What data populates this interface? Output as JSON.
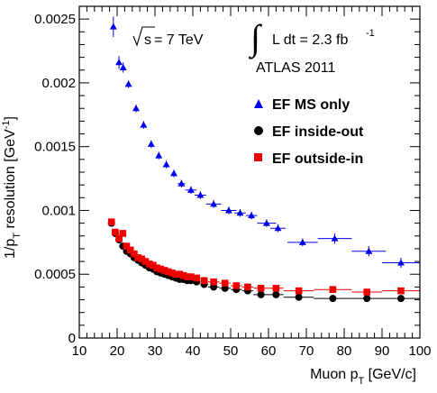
{
  "chart_data": {
    "type": "scatter",
    "xlabel": "Muon p_T [GeV/c]",
    "ylabel": "1/p_T resolution [GeV^-1]",
    "xlim": [
      10,
      100
    ],
    "ylim": [
      0,
      0.0026
    ],
    "x_ticks": [
      "10",
      "20",
      "30",
      "40",
      "50",
      "60",
      "70",
      "80",
      "90",
      "100"
    ],
    "y_ticks": [
      "0",
      "0.0005",
      "0.001",
      "0.0015",
      "0.002",
      "0.0025"
    ],
    "annotations": {
      "energy": "= 7 TeV",
      "lumi": "L dt = 2.3 fb",
      "lumi_exp": "-1",
      "experiment": "ATLAS 2011"
    },
    "legend_position": "top-right",
    "series": [
      {
        "name": "EF MS only",
        "marker": "triangle",
        "color": "#0000ee",
        "points": [
          {
            "x": 19.0,
            "y": 0.00244,
            "xerr": 0.5,
            "yerr": 8e-05
          },
          {
            "x": 20.5,
            "y": 0.00216,
            "xerr": 0.5,
            "yerr": 5e-05
          },
          {
            "x": 21.6,
            "y": 0.00212,
            "xerr": 0.5,
            "yerr": 4e-05
          },
          {
            "x": 23.0,
            "y": 0.00199,
            "xerr": 0.5,
            "yerr": 3e-05
          },
          {
            "x": 25.0,
            "y": 0.0018,
            "xerr": 0.5,
            "yerr": 3e-05
          },
          {
            "x": 27.0,
            "y": 0.00167,
            "xerr": 0.5,
            "yerr": 3e-05
          },
          {
            "x": 29.0,
            "y": 0.00152,
            "xerr": 0.5,
            "yerr": 3e-05
          },
          {
            "x": 31.0,
            "y": 0.00143,
            "xerr": 0.5,
            "yerr": 3e-05
          },
          {
            "x": 33.0,
            "y": 0.00136,
            "xerr": 0.5,
            "yerr": 3e-05
          },
          {
            "x": 35.0,
            "y": 0.00129,
            "xerr": 0.5,
            "yerr": 3e-05
          },
          {
            "x": 37.0,
            "y": 0.00121,
            "xerr": 1.0,
            "yerr": 3e-05
          },
          {
            "x": 39.5,
            "y": 0.00116,
            "xerr": 1.5,
            "yerr": 3e-05
          },
          {
            "x": 42.0,
            "y": 0.00112,
            "xerr": 1.5,
            "yerr": 3e-05
          },
          {
            "x": 45.5,
            "y": 0.00105,
            "xerr": 2.0,
            "yerr": 3e-05
          },
          {
            "x": 49.5,
            "y": 0.001,
            "xerr": 2.0,
            "yerr": 3e-05
          },
          {
            "x": 52.5,
            "y": 0.00098,
            "xerr": 1.5,
            "yerr": 3e-05
          },
          {
            "x": 55.5,
            "y": 0.00096,
            "xerr": 1.5,
            "yerr": 3e-05
          },
          {
            "x": 59.5,
            "y": 0.0009,
            "xerr": 2.5,
            "yerr": 3e-05
          },
          {
            "x": 62.5,
            "y": 0.00086,
            "xerr": 2.0,
            "yerr": 3e-05
          },
          {
            "x": 69.0,
            "y": 0.00075,
            "xerr": 4.0,
            "yerr": 3e-05
          },
          {
            "x": 77.5,
            "y": 0.00078,
            "xerr": 4.5,
            "yerr": 4e-05
          },
          {
            "x": 86.5,
            "y": 0.00068,
            "xerr": 4.5,
            "yerr": 4e-05
          },
          {
            "x": 95.0,
            "y": 0.00059,
            "xerr": 5.0,
            "yerr": 4e-05
          }
        ]
      },
      {
        "name": "EF inside-out",
        "marker": "circle",
        "color": "#000000",
        "points": [
          {
            "x": 18.5,
            "y": 0.0009,
            "xerr": 0.5,
            "yerr": 2e-05
          },
          {
            "x": 19.5,
            "y": 0.00082,
            "xerr": 0.5,
            "yerr": 2e-05
          },
          {
            "x": 20.5,
            "y": 0.00077,
            "xerr": 0.5,
            "yerr": 2e-05
          },
          {
            "x": 21.5,
            "y": 0.00072,
            "xerr": 0.5,
            "yerr": 2e-05
          },
          {
            "x": 22.5,
            "y": 0.00068,
            "xerr": 0.5,
            "yerr": 2e-05
          },
          {
            "x": 23.5,
            "y": 0.00066,
            "xerr": 0.5,
            "yerr": 2e-05
          },
          {
            "x": 24.5,
            "y": 0.00063,
            "xerr": 0.5,
            "yerr": 2e-05
          },
          {
            "x": 25.5,
            "y": 0.00061,
            "xerr": 0.5,
            "yerr": 2e-05
          },
          {
            "x": 26.5,
            "y": 0.00059,
            "xerr": 0.5,
            "yerr": 2e-05
          },
          {
            "x": 27.5,
            "y": 0.00057,
            "xerr": 0.5,
            "yerr": 2e-05
          },
          {
            "x": 28.5,
            "y": 0.00055,
            "xerr": 0.5,
            "yerr": 2e-05
          },
          {
            "x": 29.5,
            "y": 0.00054,
            "xerr": 0.5,
            "yerr": 2e-05
          },
          {
            "x": 30.5,
            "y": 0.00052,
            "xerr": 0.5,
            "yerr": 2e-05
          },
          {
            "x": 31.5,
            "y": 0.00051,
            "xerr": 0.5,
            "yerr": 2e-05
          },
          {
            "x": 32.5,
            "y": 0.0005,
            "xerr": 0.5,
            "yerr": 2e-05
          },
          {
            "x": 33.5,
            "y": 0.00049,
            "xerr": 0.5,
            "yerr": 2e-05
          },
          {
            "x": 34.5,
            "y": 0.00048,
            "xerr": 0.5,
            "yerr": 2e-05
          },
          {
            "x": 35.5,
            "y": 0.00047,
            "xerr": 0.5,
            "yerr": 2e-05
          },
          {
            "x": 36.5,
            "y": 0.00046,
            "xerr": 0.5,
            "yerr": 2e-05
          },
          {
            "x": 37.5,
            "y": 0.00046,
            "xerr": 0.5,
            "yerr": 2e-05
          },
          {
            "x": 38.5,
            "y": 0.00045,
            "xerr": 0.5,
            "yerr": 2e-05
          },
          {
            "x": 39.5,
            "y": 0.00045,
            "xerr": 0.5,
            "yerr": 2e-05
          },
          {
            "x": 41.0,
            "y": 0.00044,
            "xerr": 1.0,
            "yerr": 2e-05
          },
          {
            "x": 43.0,
            "y": 0.00042,
            "xerr": 1.0,
            "yerr": 2e-05
          },
          {
            "x": 45.5,
            "y": 0.0004,
            "xerr": 1.5,
            "yerr": 2e-05
          },
          {
            "x": 48.5,
            "y": 0.00039,
            "xerr": 1.5,
            "yerr": 2e-05
          },
          {
            "x": 51.5,
            "y": 0.00038,
            "xerr": 1.5,
            "yerr": 2e-05
          },
          {
            "x": 54.5,
            "y": 0.00037,
            "xerr": 1.5,
            "yerr": 2e-05
          },
          {
            "x": 58.0,
            "y": 0.00034,
            "xerr": 2.0,
            "yerr": 2e-05
          },
          {
            "x": 62.0,
            "y": 0.00034,
            "xerr": 2.0,
            "yerr": 2e-05
          },
          {
            "x": 68.0,
            "y": 0.00032,
            "xerr": 4.0,
            "yerr": 2e-05
          },
          {
            "x": 77.0,
            "y": 0.00031,
            "xerr": 5.0,
            "yerr": 2e-05
          },
          {
            "x": 86.0,
            "y": 0.00031,
            "xerr": 4.0,
            "yerr": 2e-05
          },
          {
            "x": 95.0,
            "y": 0.00031,
            "xerr": 5.0,
            "yerr": 2e-05
          }
        ]
      },
      {
        "name": "EF outside-in",
        "marker": "square",
        "color": "#ee0000",
        "points": [
          {
            "x": 18.5,
            "y": 0.00091,
            "xerr": 0.5,
            "yerr": 2e-05
          },
          {
            "x": 19.5,
            "y": 0.00083,
            "xerr": 0.5,
            "yerr": 2e-05
          },
          {
            "x": 20.5,
            "y": 0.00078,
            "xerr": 0.5,
            "yerr": 2e-05
          },
          {
            "x": 21.5,
            "y": 0.00082,
            "xerr": 0.5,
            "yerr": 2e-05
          },
          {
            "x": 22.5,
            "y": 0.00072,
            "xerr": 0.5,
            "yerr": 2e-05
          },
          {
            "x": 23.5,
            "y": 0.00069,
            "xerr": 0.5,
            "yerr": 2e-05
          },
          {
            "x": 24.5,
            "y": 0.00066,
            "xerr": 0.5,
            "yerr": 2e-05
          },
          {
            "x": 25.5,
            "y": 0.00063,
            "xerr": 0.5,
            "yerr": 2e-05
          },
          {
            "x": 26.5,
            "y": 0.00062,
            "xerr": 0.5,
            "yerr": 2e-05
          },
          {
            "x": 27.5,
            "y": 0.0006,
            "xerr": 0.5,
            "yerr": 2e-05
          },
          {
            "x": 28.5,
            "y": 0.00058,
            "xerr": 0.5,
            "yerr": 2e-05
          },
          {
            "x": 29.5,
            "y": 0.00057,
            "xerr": 0.5,
            "yerr": 2e-05
          },
          {
            "x": 30.5,
            "y": 0.00055,
            "xerr": 0.5,
            "yerr": 2e-05
          },
          {
            "x": 31.5,
            "y": 0.00054,
            "xerr": 0.5,
            "yerr": 2e-05
          },
          {
            "x": 32.5,
            "y": 0.00053,
            "xerr": 0.5,
            "yerr": 2e-05
          },
          {
            "x": 33.5,
            "y": 0.00052,
            "xerr": 0.5,
            "yerr": 2e-05
          },
          {
            "x": 34.5,
            "y": 0.00051,
            "xerr": 0.5,
            "yerr": 2e-05
          },
          {
            "x": 35.5,
            "y": 0.0005,
            "xerr": 0.5,
            "yerr": 2e-05
          },
          {
            "x": 36.5,
            "y": 0.0005,
            "xerr": 0.5,
            "yerr": 2e-05
          },
          {
            "x": 37.5,
            "y": 0.00049,
            "xerr": 0.5,
            "yerr": 2e-05
          },
          {
            "x": 38.5,
            "y": 0.00048,
            "xerr": 0.5,
            "yerr": 2e-05
          },
          {
            "x": 39.5,
            "y": 0.00048,
            "xerr": 0.5,
            "yerr": 2e-05
          },
          {
            "x": 41.0,
            "y": 0.00047,
            "xerr": 1.0,
            "yerr": 2e-05
          },
          {
            "x": 43.0,
            "y": 0.00045,
            "xerr": 1.0,
            "yerr": 2e-05
          },
          {
            "x": 45.5,
            "y": 0.00044,
            "xerr": 1.5,
            "yerr": 2e-05
          },
          {
            "x": 48.5,
            "y": 0.00043,
            "xerr": 1.5,
            "yerr": 2e-05
          },
          {
            "x": 51.5,
            "y": 0.00041,
            "xerr": 1.5,
            "yerr": 2e-05
          },
          {
            "x": 54.5,
            "y": 0.0004,
            "xerr": 1.5,
            "yerr": 2e-05
          },
          {
            "x": 58.0,
            "y": 0.00039,
            "xerr": 2.0,
            "yerr": 2e-05
          },
          {
            "x": 62.0,
            "y": 0.00039,
            "xerr": 2.0,
            "yerr": 2e-05
          },
          {
            "x": 68.0,
            "y": 0.00037,
            "xerr": 4.0,
            "yerr": 2e-05
          },
          {
            "x": 77.0,
            "y": 0.00038,
            "xerr": 5.0,
            "yerr": 2e-05
          },
          {
            "x": 86.0,
            "y": 0.00036,
            "xerr": 4.0,
            "yerr": 2e-05
          },
          {
            "x": 95.0,
            "y": 0.00037,
            "xerr": 5.0,
            "yerr": 2e-05
          }
        ]
      }
    ]
  }
}
